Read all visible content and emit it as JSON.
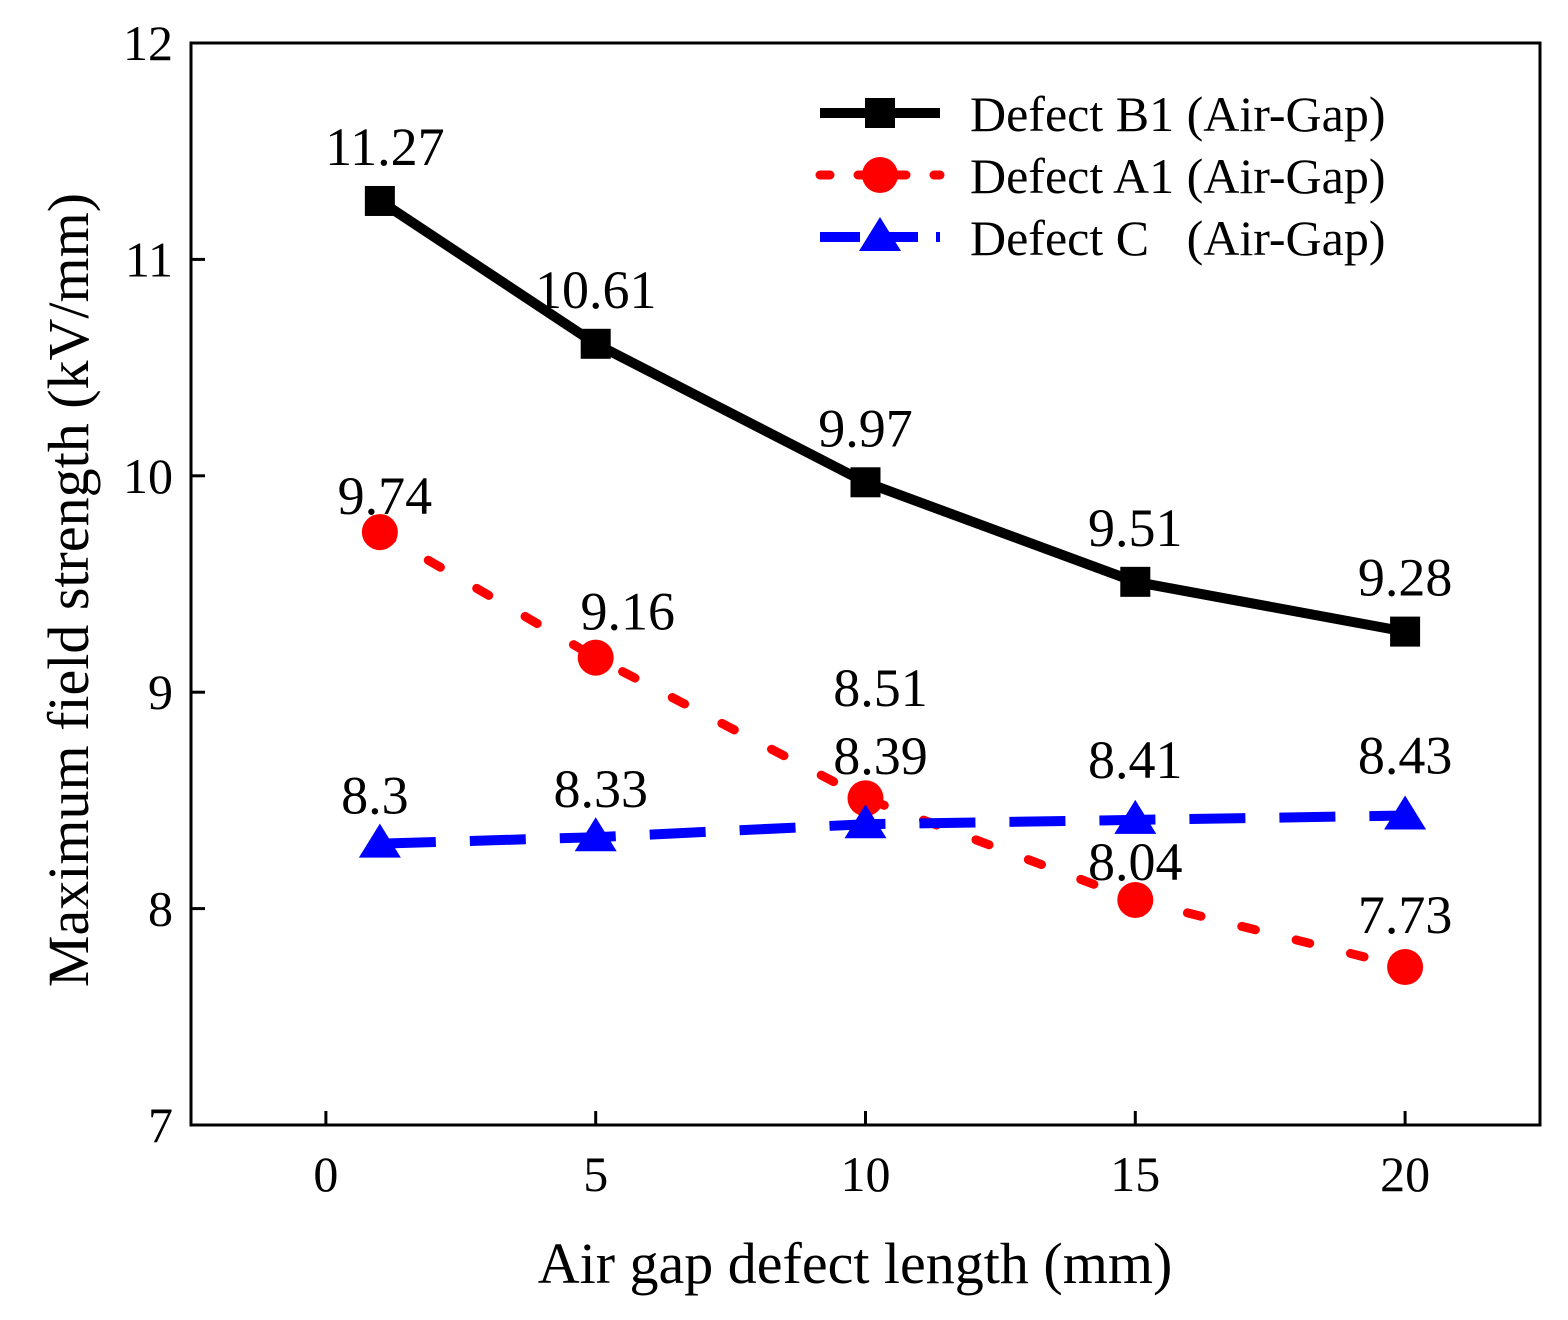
{
  "chart_data": {
    "type": "line",
    "title": "",
    "xlabel": "Air gap defect length (mm)",
    "ylabel": "Maximum field strength (kV/mm)",
    "xlim": [
      -2.5,
      22.5
    ],
    "ylim": [
      7,
      12
    ],
    "xticks": [
      0,
      5,
      10,
      15,
      20
    ],
    "yticks": [
      7,
      8,
      9,
      10,
      11,
      12
    ],
    "legend": "top-right",
    "series": [
      {
        "name": "Defect B1 (Air-Gap)",
        "x": [
          1,
          5,
          10,
          15,
          20
        ],
        "values": [
          11.27,
          10.61,
          9.97,
          9.51,
          9.28
        ],
        "labels": [
          "11.27",
          "10.61",
          "9.97",
          "9.51",
          "9.28"
        ],
        "color": "#000000",
        "marker": "square",
        "line": "solid"
      },
      {
        "name": "Defect A1 (Air-Gap)",
        "x": [
          1,
          5,
          10,
          15,
          20
        ],
        "values": [
          9.74,
          9.16,
          8.51,
          8.04,
          7.73
        ],
        "labels": [
          "9.74",
          "9.16",
          "8.51",
          "8.04",
          "7.73"
        ],
        "color": "#ff0000",
        "marker": "circle",
        "line": "dotted"
      },
      {
        "name": "Defect C   (Air-Gap)",
        "x": [
          1,
          5,
          10,
          15,
          20
        ],
        "values": [
          8.3,
          8.33,
          8.39,
          8.41,
          8.43
        ],
        "labels": [
          "8.3",
          "8.33",
          "8.39",
          "8.41",
          "8.43"
        ],
        "color": "#0000ff",
        "marker": "triangle",
        "line": "dashed"
      }
    ]
  }
}
